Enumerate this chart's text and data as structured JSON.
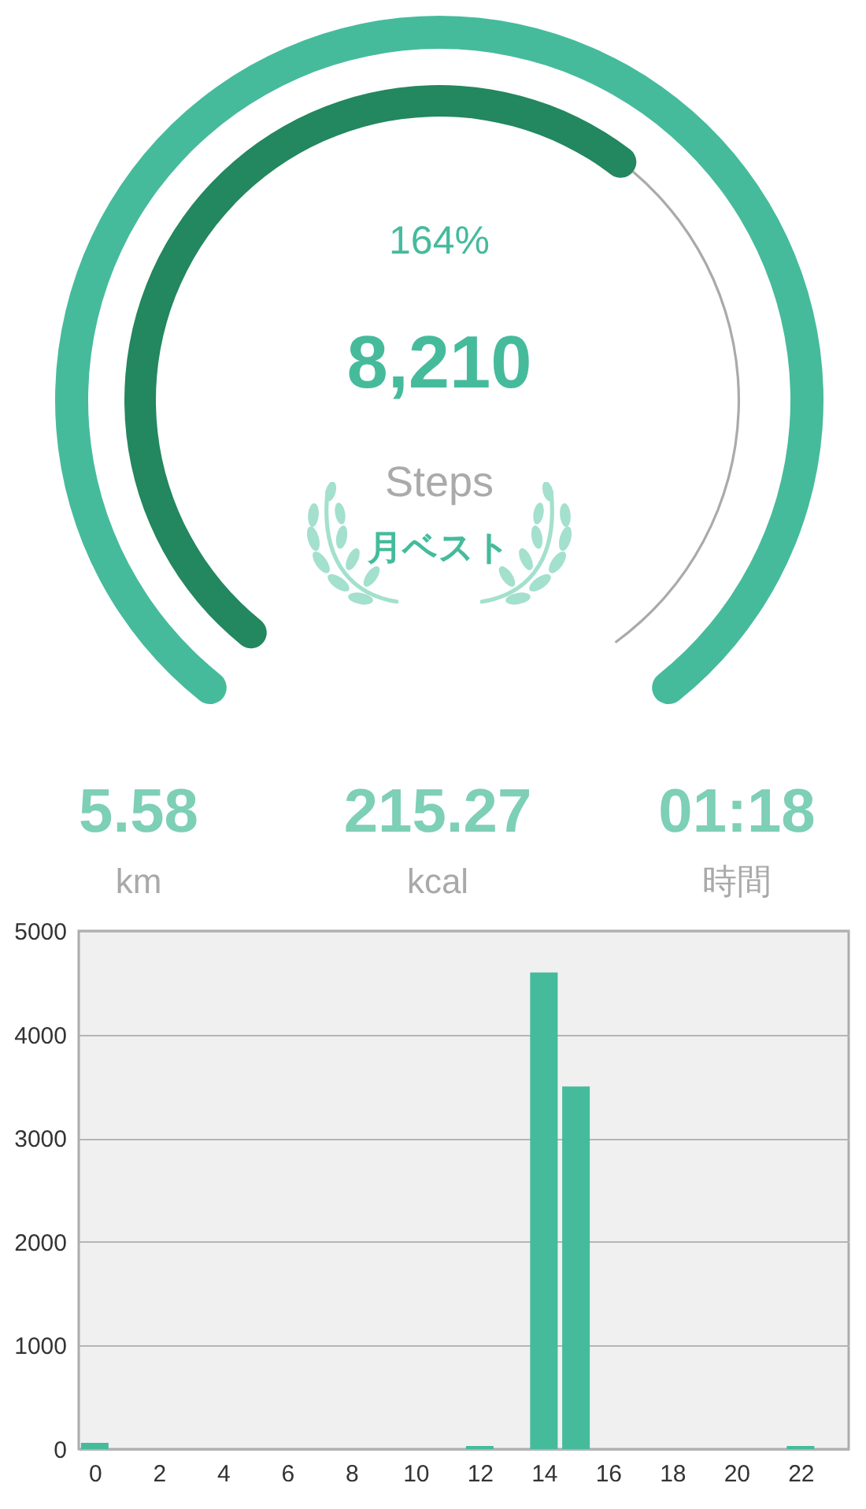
{
  "chart_data": [
    {
      "type": "other",
      "values": [
        164
      ],
      "value_labels": [
        "164%"
      ],
      "color": "#45bb9c",
      "annotations": [
        "8,210",
        "Steps",
        "月ベスト"
      ]
    },
    {
      "type": "other",
      "annotations": [
        "5.58",
        "km",
        "215.27",
        "kcal",
        "01:18",
        "時間"
      ]
    },
    {
      "type": "bar",
      "x": [
        0,
        12,
        14,
        15,
        22
      ],
      "values": [
        60,
        30,
        4600,
        3500,
        30
      ],
      "color": "#45bb9c",
      "xlim": [
        -0.5,
        23.5
      ],
      "xticks": [
        0,
        2,
        4,
        6,
        8,
        10,
        12,
        14,
        16,
        18,
        20,
        22
      ],
      "ylim": [
        0,
        5000
      ],
      "yticks": [
        0,
        1000,
        2000,
        3000,
        4000,
        5000
      ],
      "grid": "y"
    }
  ]
}
